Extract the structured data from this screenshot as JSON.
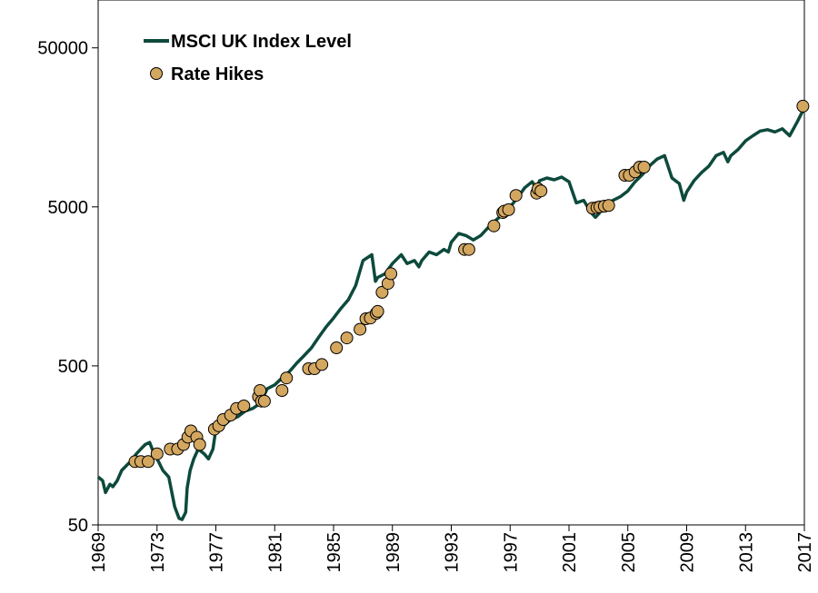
{
  "chart_data": {
    "type": "line",
    "title": "",
    "xlabel": "",
    "ylabel": "",
    "y_scale": "log",
    "ylim": [
      50,
      100000
    ],
    "xlim": [
      1969,
      2017
    ],
    "x_ticks": [
      "1969",
      "1973",
      "1977",
      "1981",
      "1985",
      "1989",
      "1993",
      "1997",
      "2001",
      "2005",
      "2009",
      "2013",
      "2017"
    ],
    "y_ticks": [
      "50",
      "500",
      "5000",
      "50000"
    ],
    "grid": false,
    "legend": {
      "placement": "top-left",
      "entries": [
        "MSCI UK Index Level",
        "Rate Hikes"
      ]
    },
    "colors": {
      "line": "#0d4a3c",
      "marker_fill": "#d4a760",
      "marker_stroke": "#000000"
    },
    "series": [
      {
        "name": "MSCI UK Index Level",
        "kind": "line",
        "x": [
          1969.0,
          1969.3,
          1969.5,
          1969.8,
          1970.0,
          1970.3,
          1970.6,
          1971.0,
          1971.3,
          1971.6,
          1971.9,
          1972.2,
          1972.5,
          1972.8,
          1973.1,
          1973.4,
          1973.8,
          1974.2,
          1974.5,
          1974.7,
          1974.95,
          1975.05,
          1975.25,
          1975.5,
          1975.8,
          1976.2,
          1976.5,
          1976.8,
          1977.0,
          1977.5,
          1978.0,
          1978.5,
          1979.0,
          1979.5,
          1980.0,
          1980.5,
          1981.0,
          1981.5,
          1982.0,
          1982.5,
          1983.0,
          1983.5,
          1984.0,
          1984.5,
          1985.0,
          1985.5,
          1986.0,
          1986.5,
          1987.0,
          1987.6,
          1987.85,
          1988.0,
          1988.5,
          1989.0,
          1989.6,
          1990.0,
          1990.5,
          1990.8,
          1991.0,
          1991.5,
          1992.0,
          1992.5,
          1992.8,
          1993.0,
          1993.5,
          1994.0,
          1994.5,
          1995.0,
          1995.5,
          1996.0,
          1996.5,
          1997.0,
          1997.5,
          1998.0,
          1998.5,
          1998.8,
          1999.0,
          1999.5,
          2000.0,
          2000.5,
          2001.0,
          2001.5,
          2002.0,
          2002.5,
          2002.8,
          2003.0,
          2003.5,
          2004.0,
          2004.5,
          2005.0,
          2005.5,
          2006.0,
          2006.5,
          2007.0,
          2007.5,
          2008.0,
          2008.5,
          2008.8,
          2009.0,
          2009.5,
          2010.0,
          2010.5,
          2011.0,
          2011.5,
          2011.8,
          2012.0,
          2012.5,
          2013.0,
          2013.5,
          2014.0,
          2014.5,
          2015.0,
          2015.5,
          2016.0,
          2016.5,
          2017.0
        ],
        "y": [
          100,
          95,
          80,
          90,
          87,
          95,
          110,
          120,
          128,
          140,
          150,
          160,
          165,
          140,
          125,
          110,
          100,
          65,
          55,
          54,
          60,
          85,
          110,
          130,
          150,
          140,
          130,
          150,
          200,
          210,
          230,
          240,
          260,
          270,
          290,
          360,
          380,
          420,
          460,
          520,
          580,
          650,
          760,
          880,
          1000,
          1150,
          1300,
          1600,
          2300,
          2500,
          1700,
          1800,
          1900,
          2200,
          2500,
          2200,
          2300,
          2100,
          2300,
          2600,
          2500,
          2700,
          2600,
          3000,
          3400,
          3300,
          3100,
          3300,
          3700,
          4100,
          4500,
          5000,
          5700,
          6600,
          7200,
          6500,
          7300,
          7600,
          7400,
          7700,
          7200,
          5300,
          5500,
          4600,
          4300,
          4500,
          5200,
          5500,
          5800,
          6300,
          7200,
          8000,
          9100,
          10000,
          10500,
          7600,
          7000,
          5500,
          6200,
          7300,
          8200,
          9000,
          10500,
          11000,
          9600,
          10500,
          11500,
          13000,
          14000,
          15000,
          15300,
          14800,
          15500,
          14000,
          17000,
          21000
        ]
      },
      {
        "name": "Rate Hikes",
        "kind": "scatter",
        "x": [
          1971.5,
          1971.9,
          1972.4,
          1973.0,
          1973.9,
          1974.4,
          1974.8,
          1975.1,
          1975.3,
          1975.7,
          1975.9,
          1976.9,
          1977.2,
          1977.5,
          1978.0,
          1978.4,
          1978.9,
          1979.9,
          1980.0,
          1980.1,
          1980.3,
          1981.5,
          1981.8,
          1983.3,
          1983.7,
          1984.2,
          1985.2,
          1985.9,
          1986.8,
          1987.2,
          1987.5,
          1987.9,
          1988.0,
          1988.3,
          1988.7,
          1988.9,
          1993.9,
          1994.2,
          1995.9,
          1996.5,
          1996.6,
          1996.9,
          1997.4,
          1998.8,
          1998.9,
          1999.1,
          2002.6,
          2002.9,
          2003.1,
          2003.4,
          2003.7,
          2004.8,
          2005.1,
          2005.5,
          2005.8,
          2006.1,
          2016.9
        ],
        "y": [
          125,
          125,
          125,
          140,
          150,
          150,
          160,
          178,
          195,
          178,
          160,
          200,
          210,
          230,
          245,
          270,
          280,
          320,
          350,
          300,
          300,
          350,
          420,
          480,
          480,
          510,
          650,
          750,
          850,
          990,
          1000,
          1070,
          1100,
          1450,
          1650,
          1900,
          2700,
          2700,
          3800,
          4600,
          4700,
          4800,
          5900,
          6100,
          6500,
          6300,
          4900,
          4950,
          5000,
          5050,
          5100,
          7900,
          7900,
          8300,
          8900,
          8900,
          21500
        ]
      }
    ]
  }
}
